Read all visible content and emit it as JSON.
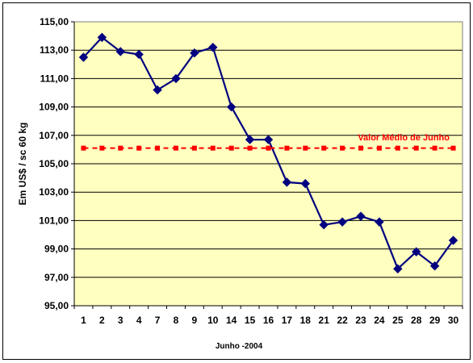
{
  "chart_data": {
    "type": "line",
    "xlabel": "Junho -2004",
    "ylabel": "Em US$ / sc 60 kg",
    "ylim": [
      95,
      115
    ],
    "y_tick_step": 2,
    "y_tick_labels": [
      "95,00",
      "97,00",
      "99,00",
      "101,00",
      "103,00",
      "105,00",
      "107,00",
      "109,00",
      "111,00",
      "113,00",
      "115,00"
    ],
    "grid": "horizontal",
    "categories": [
      "1",
      "2",
      "3",
      "4",
      "7",
      "8",
      "9",
      "10",
      "14",
      "15",
      "16",
      "17",
      "18",
      "21",
      "22",
      "23",
      "24",
      "25",
      "28",
      "29",
      "30"
    ],
    "series": [
      {
        "name": "",
        "color": "#000080",
        "marker": "diamond",
        "values": [
          112.5,
          113.9,
          112.9,
          112.7,
          110.2,
          111.0,
          112.8,
          113.2,
          109.0,
          106.7,
          106.7,
          103.7,
          103.6,
          100.7,
          100.9,
          101.3,
          100.9,
          97.6,
          98.8,
          97.8,
          99.6
        ]
      },
      {
        "name": "Valor Médio de Junho",
        "color": "#ff0000",
        "marker": "square",
        "values": [
          106.1,
          106.1,
          106.1,
          106.1,
          106.1,
          106.1,
          106.1,
          106.1,
          106.1,
          106.1,
          106.1,
          106.1,
          106.1,
          106.1,
          106.1,
          106.1,
          106.1,
          106.1,
          106.1,
          106.1,
          106.1
        ]
      }
    ],
    "plot_background": "#ffffc0"
  }
}
